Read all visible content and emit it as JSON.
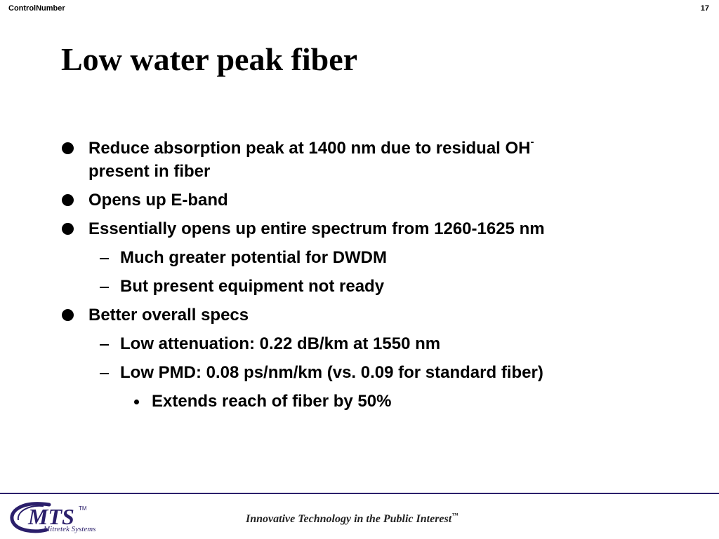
{
  "header": {
    "left_text": "ControlNumber",
    "page_number": "17"
  },
  "slide": {
    "title": "Low water peak fiber",
    "bullets": [
      {
        "level": 1,
        "text": "Reduce absorption peak at 1400 nm due to residual OH",
        "superscript": "-",
        "continuation": "present in fiber"
      },
      {
        "level": 1,
        "text": "Opens up E-band"
      },
      {
        "level": 1,
        "text": "Essentially opens up entire spectrum from 1260-1625 nm"
      },
      {
        "level": 2,
        "text": "Much greater potential for DWDM"
      },
      {
        "level": 2,
        "text": "But present equipment not ready"
      },
      {
        "level": 1,
        "text": "Better overall specs"
      },
      {
        "level": 2,
        "text": "Low attenuation: 0.22 dB/km at 1550 nm"
      },
      {
        "level": 2,
        "text": "Low PMD: 0.08 ps/nm/km (vs. 0.09 for standard fiber)"
      },
      {
        "level": 3,
        "text": "Extends reach of fiber by 50%"
      }
    ]
  },
  "footer": {
    "logo_text": "MTS",
    "logo_trademark": "TM",
    "logo_subtitle": "Mitretek Systems",
    "tagline": "Innovative Technology in the Public Interest",
    "tagline_trademark": "™"
  },
  "colors": {
    "brand": "#2b1f6b",
    "text": "#000000"
  }
}
